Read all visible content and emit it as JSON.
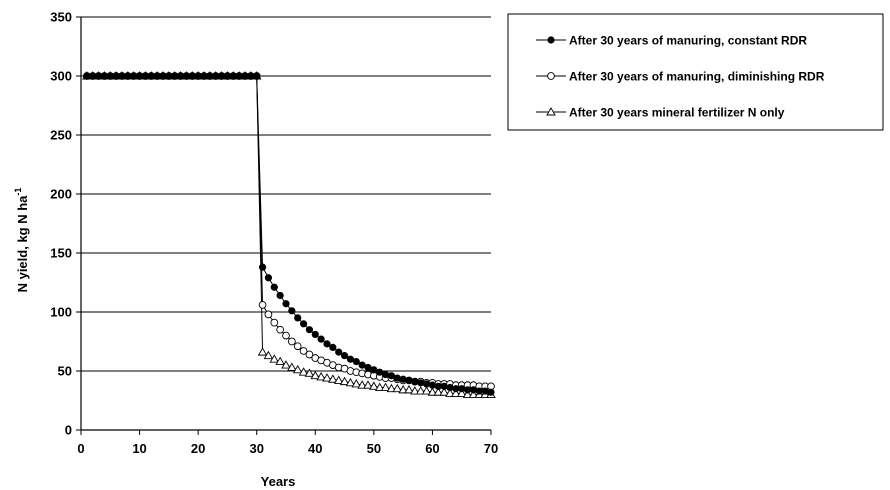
{
  "chart_data": {
    "type": "line",
    "title": "",
    "xlabel": "Years",
    "ylabel_main": "N yield, kg N ha",
    "ylabel_superscript": "-1",
    "xlim": [
      0,
      70
    ],
    "ylim": [
      0,
      350
    ],
    "x_ticks": [
      0,
      10,
      20,
      30,
      40,
      50,
      60,
      70
    ],
    "y_ticks": [
      0,
      50,
      100,
      150,
      200,
      250,
      300,
      350
    ],
    "grid": "horizontal",
    "legend_position": "top-right",
    "x": [
      1,
      2,
      3,
      4,
      5,
      6,
      7,
      8,
      9,
      10,
      11,
      12,
      13,
      14,
      15,
      16,
      17,
      18,
      19,
      20,
      21,
      22,
      23,
      24,
      25,
      26,
      27,
      28,
      29,
      30,
      31,
      32,
      33,
      34,
      35,
      36,
      37,
      38,
      39,
      40,
      41,
      42,
      43,
      44,
      45,
      46,
      47,
      48,
      49,
      50,
      51,
      52,
      53,
      54,
      55,
      56,
      57,
      58,
      59,
      60,
      61,
      62,
      63,
      64,
      65,
      66,
      67,
      68,
      69,
      70
    ],
    "series": [
      {
        "name": "After 30 years of manuring, constant RDR",
        "marker": "filled-circle",
        "values": [
          300,
          300,
          300,
          300,
          300,
          300,
          300,
          300,
          300,
          300,
          300,
          300,
          300,
          300,
          300,
          300,
          300,
          300,
          300,
          300,
          300,
          300,
          300,
          300,
          300,
          300,
          300,
          300,
          300,
          300,
          138,
          129,
          121,
          114,
          107,
          101,
          95,
          90,
          85,
          81,
          77,
          73,
          70,
          66,
          63,
          60,
          58,
          55,
          53,
          51,
          49,
          47,
          46,
          44,
          43,
          42,
          41,
          40,
          39,
          38,
          37,
          37,
          36,
          35,
          35,
          34,
          34,
          33,
          33,
          32
        ]
      },
      {
        "name": "After 30 years of manuring, diminishing RDR",
        "marker": "open-circle",
        "values": [
          300,
          300,
          300,
          300,
          300,
          300,
          300,
          300,
          300,
          300,
          300,
          300,
          300,
          300,
          300,
          300,
          300,
          300,
          300,
          300,
          300,
          300,
          300,
          300,
          300,
          300,
          300,
          300,
          300,
          300,
          106,
          98,
          91,
          85,
          80,
          75,
          71,
          67,
          64,
          61,
          59,
          57,
          55,
          53,
          52,
          50,
          49,
          48,
          47,
          46,
          45,
          44,
          44,
          43,
          42,
          42,
          41,
          41,
          40,
          40,
          39,
          39,
          39,
          38,
          38,
          38,
          38,
          37,
          37,
          37
        ]
      },
      {
        "name": "After 30 years mineral fertilizer N only",
        "marker": "open-triangle",
        "values": [
          300,
          300,
          300,
          300,
          300,
          300,
          300,
          300,
          300,
          300,
          300,
          300,
          300,
          300,
          300,
          300,
          300,
          300,
          300,
          300,
          300,
          300,
          300,
          300,
          300,
          300,
          300,
          300,
          300,
          300,
          66,
          63,
          60,
          58,
          55,
          53,
          51,
          49,
          48,
          46,
          45,
          44,
          43,
          42,
          41,
          40,
          39,
          38,
          38,
          37,
          36,
          36,
          35,
          35,
          34,
          34,
          33,
          33,
          33,
          32,
          32,
          32,
          31,
          31,
          31,
          30,
          30,
          30,
          30,
          30
        ]
      }
    ],
    "colors": {
      "line": "#000000",
      "grid": "#000000",
      "open_fill": "#ffffff"
    }
  }
}
